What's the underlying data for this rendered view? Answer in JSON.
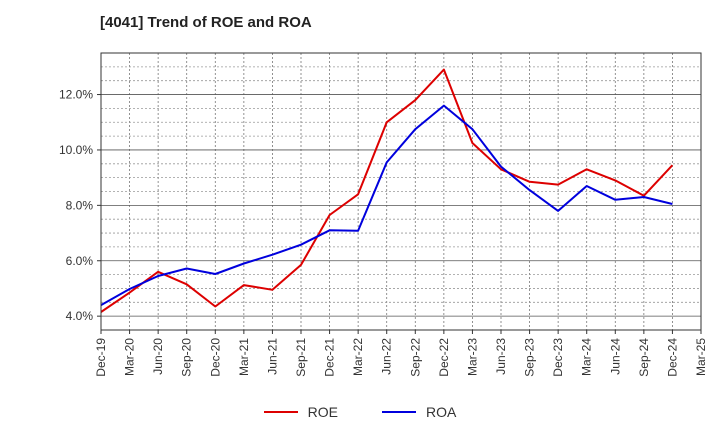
{
  "chart_data": {
    "type": "line",
    "title": "[4041]  Trend of ROE and ROA",
    "xlabel": "",
    "ylabel": "",
    "ylim": [
      3.5,
      13.5
    ],
    "yticks": [
      "4.0%",
      "6.0%",
      "8.0%",
      "10.0%",
      "12.0%"
    ],
    "ytick_values": [
      4.0,
      6.0,
      8.0,
      10.0,
      12.0
    ],
    "categories": [
      "Dec-19",
      "Mar-20",
      "Jun-20",
      "Sep-20",
      "Dec-20",
      "Mar-21",
      "Jun-21",
      "Sep-21",
      "Dec-21",
      "Mar-22",
      "Jun-22",
      "Sep-22",
      "Dec-22",
      "Mar-23",
      "Jun-23",
      "Sep-23",
      "Dec-23",
      "Mar-24",
      "Jun-24",
      "Sep-24",
      "Dec-24",
      "Mar-25"
    ],
    "grid": true,
    "legend_position": "bottom",
    "series": [
      {
        "name": "ROE",
        "color": "#dd0000",
        "values": [
          4.15,
          4.85,
          5.6,
          5.15,
          4.35,
          5.12,
          4.95,
          5.85,
          7.65,
          8.4,
          11.0,
          11.8,
          12.9,
          10.25,
          9.3,
          8.85,
          8.75,
          9.3,
          8.9,
          8.35,
          9.45,
          null
        ]
      },
      {
        "name": "ROA",
        "color": "#0000dd",
        "values": [
          4.4,
          4.98,
          5.45,
          5.72,
          5.52,
          5.9,
          6.22,
          6.58,
          7.1,
          7.08,
          9.55,
          10.75,
          11.6,
          10.75,
          9.4,
          8.55,
          7.8,
          8.7,
          8.2,
          8.3,
          8.05,
          null
        ]
      }
    ]
  }
}
